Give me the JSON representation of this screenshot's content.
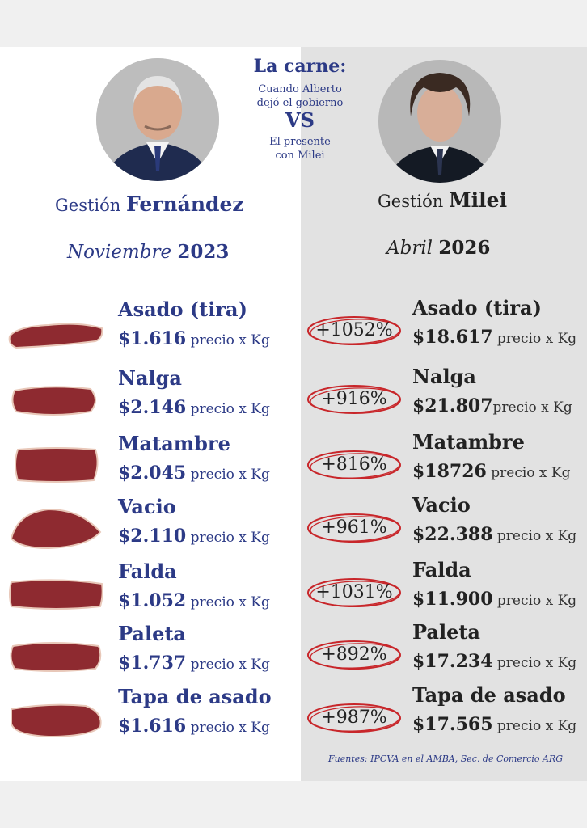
{
  "header": {
    "title": "La carne:",
    "line1": "Cuando Alberto",
    "line2": "dejó el gobierno",
    "vs": "VS",
    "line3": "El presente",
    "line4": "con Milei"
  },
  "left": {
    "gestion_prefix": "Gestión",
    "gestion_name": "Fernández",
    "month": "Noviembre",
    "year": "2023"
  },
  "right": {
    "gestion_prefix": "Gestión",
    "gestion_name": "Milei",
    "month": "Abril",
    "year": "2026"
  },
  "unit": "precio x Kg",
  "rows": [
    {
      "name": "Asado (tira)",
      "old_price": "$1.616",
      "pct": "+1052%",
      "new_price": "$18.617"
    },
    {
      "name": "Nalga",
      "old_price": "$2.146",
      "pct": "+916%",
      "new_price": "$21.807"
    },
    {
      "name": "Matambre",
      "old_price": "$2.045",
      "pct": "+816%",
      "new_price": "$18726"
    },
    {
      "name": "Vacio",
      "old_price": "$2.110",
      "pct": "+961%",
      "new_price": "$22.388"
    },
    {
      "name": "Falda",
      "old_price": "$1.052",
      "pct": "+1031%",
      "new_price": "$11.900"
    },
    {
      "name": "Paleta",
      "old_price": "$1.737",
      "pct": "+892%",
      "new_price": "$17.234"
    },
    {
      "name": "Tapa de asado",
      "old_price": "$1.616",
      "pct": "+987%",
      "new_price": "$17.565"
    }
  ],
  "source": "Fuentes: IPCVA en el AMBA, Sec. de Comercio ARG",
  "colors": {
    "navy": "#2c3a86",
    "circle_red": "#c8262a",
    "right_panel": "#e2e2e2"
  }
}
